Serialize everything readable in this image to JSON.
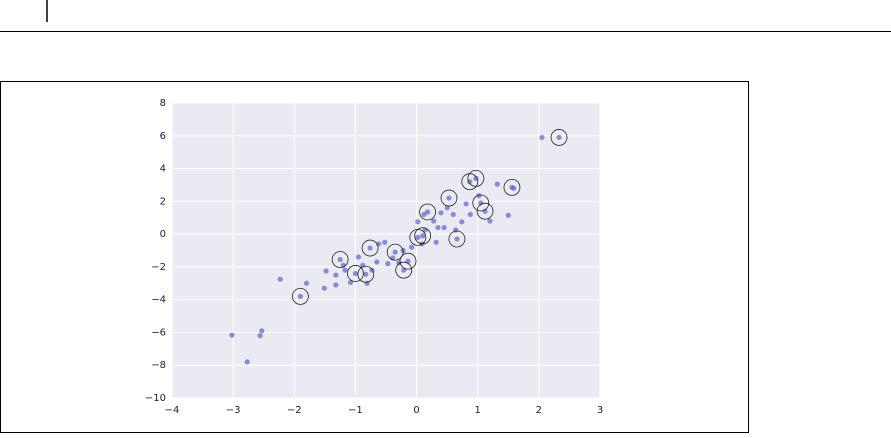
{
  "chart_data": {
    "type": "scatter",
    "xlim": [
      -4,
      3
    ],
    "ylim": [
      -10,
      8
    ],
    "xticks": [
      {
        "value": -4,
        "label": "−4"
      },
      {
        "value": -3,
        "label": "−3"
      },
      {
        "value": -2,
        "label": "−2"
      },
      {
        "value": -1,
        "label": "−1"
      },
      0,
      1,
      2,
      3
    ],
    "yticks": [
      {
        "value": -10,
        "label": "−10"
      },
      {
        "value": -8,
        "label": "−8"
      },
      {
        "value": -6,
        "label": "−6"
      },
      {
        "value": -4,
        "label": "−4"
      },
      {
        "value": -2,
        "label": "−2"
      },
      0,
      2,
      4,
      6,
      8
    ],
    "grid": true,
    "series": [
      {
        "color": "#6b6bc9",
        "marker": "dot",
        "x": [
          -3.02,
          -2.77,
          -2.53,
          -2.56,
          -2.23,
          -1.9,
          -1.8,
          -1.51,
          -1.48,
          -1.32,
          -1.32,
          -1.25,
          -1.2,
          -1.17,
          -1.08,
          -1.0,
          -0.95,
          -0.88,
          -0.83,
          -0.81,
          -0.76,
          -0.73,
          -0.65,
          -0.62,
          -0.52,
          -0.47,
          -0.39,
          -0.35,
          -0.29,
          -0.21,
          -0.14,
          -0.08,
          0.02,
          0.1,
          0.02,
          0.12,
          0.18,
          0.28,
          0.35,
          0.4,
          0.5,
          0.53,
          0.6,
          0.64,
          0.66,
          0.74,
          0.81,
          0.87,
          0.97,
          0.88,
          1.02,
          1.05,
          1.12,
          1.2,
          1.32,
          1.5,
          1.56,
          1.59,
          2.05,
          2.33,
          0.32,
          0.09,
          -0.22,
          0.14,
          0.45
        ],
        "values": [
          -6.16,
          -7.8,
          -5.9,
          -6.2,
          -2.75,
          -3.8,
          -3.0,
          -3.3,
          -2.25,
          -2.5,
          -3.1,
          -1.55,
          -1.9,
          -2.2,
          -2.95,
          -2.4,
          -1.4,
          -1.9,
          -2.45,
          -3.0,
          -0.85,
          -2.2,
          -1.7,
          -0.6,
          -0.5,
          -1.8,
          -1.45,
          -1.1,
          -1.75,
          -2.2,
          -1.65,
          -0.8,
          -0.2,
          -0.1,
          0.75,
          1.2,
          1.35,
          0.8,
          0.4,
          1.3,
          1.6,
          2.2,
          1.2,
          0.25,
          -0.3,
          0.75,
          1.85,
          3.2,
          3.4,
          1.2,
          2.35,
          1.9,
          1.4,
          0.8,
          3.05,
          1.15,
          2.85,
          2.8,
          5.9,
          5.9,
          -0.5,
          -0.6,
          -1.0,
          0.25,
          0.4
        ]
      },
      {
        "color": "#222222",
        "marker": "ring",
        "x": [
          -1.9,
          -1.25,
          -1.0,
          -0.83,
          -0.76,
          -0.35,
          -0.21,
          -0.14,
          0.02,
          0.1,
          0.18,
          0.53,
          0.66,
          0.87,
          0.97,
          1.05,
          1.12,
          1.56,
          2.33
        ],
        "values": [
          -3.8,
          -1.55,
          -2.4,
          -2.45,
          -0.85,
          -1.1,
          -2.2,
          -1.65,
          -0.2,
          -0.1,
          1.35,
          2.2,
          -0.3,
          3.2,
          3.4,
          1.9,
          1.4,
          2.85,
          5.9
        ]
      }
    ]
  }
}
